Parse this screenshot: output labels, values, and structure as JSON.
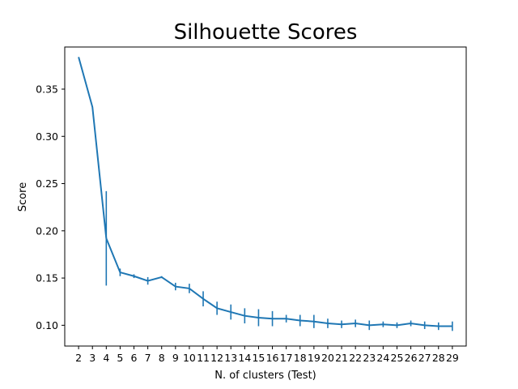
{
  "chart_data": {
    "type": "line",
    "title": "Silhouette Scores",
    "xlabel": "N. of clusters (Test)",
    "ylabel": "Score",
    "x": [
      2,
      3,
      4,
      5,
      6,
      7,
      8,
      9,
      10,
      11,
      12,
      13,
      14,
      15,
      16,
      17,
      18,
      19,
      20,
      21,
      22,
      23,
      24,
      25,
      26,
      27,
      28,
      29
    ],
    "xticks": [
      "2",
      "3",
      "4",
      "5",
      "6",
      "7",
      "8",
      "9",
      "10",
      "11",
      "12",
      "13",
      "14",
      "15",
      "16",
      "17",
      "18",
      "19",
      "20",
      "21",
      "22",
      "23",
      "24",
      "25",
      "26",
      "27",
      "28",
      "29"
    ],
    "y": [
      0.384,
      0.331,
      0.192,
      0.156,
      0.152,
      0.147,
      0.151,
      0.141,
      0.139,
      0.128,
      0.118,
      0.114,
      0.11,
      0.108,
      0.107,
      0.107,
      0.105,
      0.104,
      0.102,
      0.101,
      0.102,
      0.1,
      0.101,
      0.1,
      0.102,
      0.1,
      0.099,
      0.099
    ],
    "yerr": [
      0.0,
      0.0,
      0.05,
      0.004,
      0.002,
      0.004,
      0.001,
      0.004,
      0.005,
      0.008,
      0.007,
      0.008,
      0.008,
      0.009,
      0.008,
      0.004,
      0.006,
      0.007,
      0.005,
      0.004,
      0.004,
      0.005,
      0.003,
      0.003,
      0.003,
      0.004,
      0.004,
      0.005
    ],
    "yticks": [
      "0.10",
      "0.15",
      "0.20",
      "0.25",
      "0.30",
      "0.35"
    ],
    "ytick_values": [
      0.1,
      0.15,
      0.2,
      0.25,
      0.3,
      0.35
    ],
    "xlim": [
      1,
      30
    ],
    "ylim": [
      0.078,
      0.3946
    ],
    "grid": false,
    "color": "#1f77b4"
  }
}
